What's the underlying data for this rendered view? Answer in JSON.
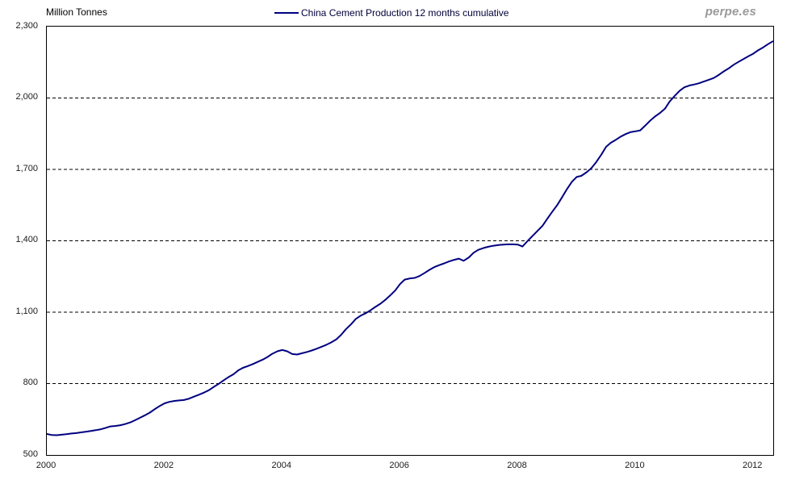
{
  "header": {
    "y_axis_title": "Million Tonnes",
    "watermark": "perpe.es"
  },
  "legend": {
    "label": "China Cement Production 12 months cumulative"
  },
  "colors": {
    "line": "#000080",
    "grid": "#000000",
    "plot_border": "#000000",
    "text": "#1a1a1a",
    "watermark": "#9a9a9a",
    "background": "#ffffff"
  },
  "chart_data": {
    "type": "line",
    "title": "",
    "xlabel": "",
    "ylabel": "Million Tonnes",
    "x_start": 2000,
    "x_end": 2012.34,
    "ylim": [
      500,
      2300
    ],
    "ytick_step": 300,
    "grid": "horizontal-dashed",
    "legend_position": "top-center",
    "yticks": [
      {
        "value": 2300,
        "label": "2,300"
      },
      {
        "value": 2000,
        "label": "2,000"
      },
      {
        "value": 1700,
        "label": "1,700"
      },
      {
        "value": 1400,
        "label": "1,400"
      },
      {
        "value": 1100,
        "label": "1,100"
      },
      {
        "value": 800,
        "label": "800"
      },
      {
        "value": 500,
        "label": "500"
      }
    ],
    "gridline_values": [
      2000,
      1700,
      1400,
      1100,
      800
    ],
    "xticks": [
      {
        "value": 2000,
        "label": "2000"
      },
      {
        "value": 2002,
        "label": "2002"
      },
      {
        "value": 2004,
        "label": "2004"
      },
      {
        "value": 2006,
        "label": "2006"
      },
      {
        "value": 2008,
        "label": "2008"
      },
      {
        "value": 2010,
        "label": "2010"
      },
      {
        "value": 2012,
        "label": "2012"
      }
    ],
    "series": [
      {
        "name": "China Cement Production 12 months cumulative",
        "color": "#000080",
        "points": [
          [
            2000.0,
            588
          ],
          [
            2000.08,
            584
          ],
          [
            2000.17,
            583
          ],
          [
            2000.25,
            585
          ],
          [
            2000.33,
            587
          ],
          [
            2000.42,
            590
          ],
          [
            2000.5,
            592
          ],
          [
            2000.58,
            595
          ],
          [
            2000.67,
            598
          ],
          [
            2000.75,
            601
          ],
          [
            2000.83,
            604
          ],
          [
            2000.92,
            608
          ],
          [
            2001.0,
            614
          ],
          [
            2001.08,
            620
          ],
          [
            2001.17,
            622
          ],
          [
            2001.25,
            625
          ],
          [
            2001.33,
            630
          ],
          [
            2001.42,
            637
          ],
          [
            2001.5,
            646
          ],
          [
            2001.58,
            656
          ],
          [
            2001.67,
            667
          ],
          [
            2001.75,
            678
          ],
          [
            2001.83,
            692
          ],
          [
            2001.92,
            706
          ],
          [
            2002.0,
            717
          ],
          [
            2002.08,
            723
          ],
          [
            2002.17,
            727
          ],
          [
            2002.25,
            729
          ],
          [
            2002.33,
            731
          ],
          [
            2002.42,
            737
          ],
          [
            2002.5,
            745
          ],
          [
            2002.58,
            753
          ],
          [
            2002.67,
            762
          ],
          [
            2002.75,
            772
          ],
          [
            2002.83,
            785
          ],
          [
            2002.92,
            799
          ],
          [
            2003.0,
            813
          ],
          [
            2003.08,
            826
          ],
          [
            2003.17,
            839
          ],
          [
            2003.25,
            855
          ],
          [
            2003.33,
            866
          ],
          [
            2003.42,
            874
          ],
          [
            2003.5,
            882
          ],
          [
            2003.58,
            891
          ],
          [
            2003.67,
            901
          ],
          [
            2003.75,
            912
          ],
          [
            2003.83,
            925
          ],
          [
            2003.92,
            936
          ],
          [
            2004.0,
            941
          ],
          [
            2004.08,
            936
          ],
          [
            2004.17,
            924
          ],
          [
            2004.25,
            922
          ],
          [
            2004.33,
            927
          ],
          [
            2004.42,
            933
          ],
          [
            2004.5,
            939
          ],
          [
            2004.58,
            946
          ],
          [
            2004.67,
            955
          ],
          [
            2004.75,
            963
          ],
          [
            2004.83,
            973
          ],
          [
            2004.92,
            986
          ],
          [
            2005.0,
            1005
          ],
          [
            2005.08,
            1028
          ],
          [
            2005.17,
            1050
          ],
          [
            2005.25,
            1072
          ],
          [
            2005.33,
            1085
          ],
          [
            2005.42,
            1096
          ],
          [
            2005.5,
            1108
          ],
          [
            2005.58,
            1122
          ],
          [
            2005.67,
            1136
          ],
          [
            2005.75,
            1152
          ],
          [
            2005.83,
            1170
          ],
          [
            2005.92,
            1192
          ],
          [
            2006.0,
            1218
          ],
          [
            2006.08,
            1237
          ],
          [
            2006.17,
            1242
          ],
          [
            2006.25,
            1244
          ],
          [
            2006.33,
            1252
          ],
          [
            2006.42,
            1265
          ],
          [
            2006.5,
            1278
          ],
          [
            2006.58,
            1289
          ],
          [
            2006.67,
            1298
          ],
          [
            2006.75,
            1305
          ],
          [
            2006.83,
            1313
          ],
          [
            2006.92,
            1320
          ],
          [
            2007.0,
            1325
          ],
          [
            2007.08,
            1316
          ],
          [
            2007.17,
            1330
          ],
          [
            2007.25,
            1350
          ],
          [
            2007.33,
            1362
          ],
          [
            2007.42,
            1370
          ],
          [
            2007.5,
            1375
          ],
          [
            2007.58,
            1379
          ],
          [
            2007.67,
            1382
          ],
          [
            2007.75,
            1384
          ],
          [
            2007.83,
            1385
          ],
          [
            2007.92,
            1385
          ],
          [
            2008.0,
            1384
          ],
          [
            2008.08,
            1376
          ],
          [
            2008.17,
            1400
          ],
          [
            2008.25,
            1420
          ],
          [
            2008.33,
            1440
          ],
          [
            2008.42,
            1463
          ],
          [
            2008.5,
            1492
          ],
          [
            2008.58,
            1520
          ],
          [
            2008.67,
            1550
          ],
          [
            2008.75,
            1582
          ],
          [
            2008.83,
            1615
          ],
          [
            2008.92,
            1648
          ],
          [
            2009.0,
            1668
          ],
          [
            2009.08,
            1673
          ],
          [
            2009.17,
            1688
          ],
          [
            2009.25,
            1705
          ],
          [
            2009.33,
            1730
          ],
          [
            2009.42,
            1762
          ],
          [
            2009.5,
            1795
          ],
          [
            2009.58,
            1812
          ],
          [
            2009.67,
            1825
          ],
          [
            2009.75,
            1838
          ],
          [
            2009.83,
            1848
          ],
          [
            2009.92,
            1857
          ],
          [
            2010.0,
            1860
          ],
          [
            2010.08,
            1864
          ],
          [
            2010.17,
            1885
          ],
          [
            2010.25,
            1905
          ],
          [
            2010.33,
            1922
          ],
          [
            2010.42,
            1938
          ],
          [
            2010.5,
            1955
          ],
          [
            2010.58,
            1985
          ],
          [
            2010.67,
            2010
          ],
          [
            2010.75,
            2030
          ],
          [
            2010.83,
            2045
          ],
          [
            2010.92,
            2053
          ],
          [
            2011.0,
            2057
          ],
          [
            2011.08,
            2062
          ],
          [
            2011.17,
            2070
          ],
          [
            2011.25,
            2077
          ],
          [
            2011.33,
            2084
          ],
          [
            2011.42,
            2098
          ],
          [
            2011.5,
            2112
          ],
          [
            2011.58,
            2124
          ],
          [
            2011.67,
            2140
          ],
          [
            2011.75,
            2152
          ],
          [
            2011.83,
            2163
          ],
          [
            2011.92,
            2176
          ],
          [
            2012.0,
            2186
          ],
          [
            2012.08,
            2200
          ],
          [
            2012.17,
            2213
          ],
          [
            2012.25,
            2226
          ],
          [
            2012.33,
            2238
          ]
        ]
      }
    ]
  }
}
